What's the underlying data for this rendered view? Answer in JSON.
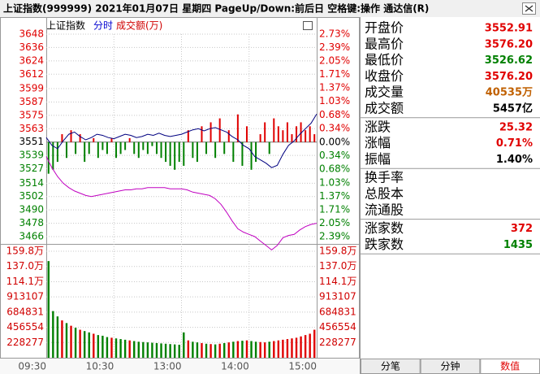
{
  "title_bar": {
    "title": "上证指数(999999)  2021年01月07日 星期四  PageUp/Down:前后日  空格键:操作  通达信(R)"
  },
  "chart": {
    "legend": {
      "name": "上证指数",
      "period": "分时",
      "indicator": "成交额(万)"
    },
    "price_axis": {
      "ylim": [
        3466,
        3648
      ],
      "ticks": [
        3648,
        3636,
        3624,
        3612,
        3599,
        3587,
        3575,
        3563,
        3551,
        3539,
        3527,
        3514,
        3502,
        3490,
        3478,
        3466
      ]
    },
    "pct_axis": {
      "y2lim": [
        -2.39,
        2.73
      ],
      "up_color": "#e00000",
      "flat_color": "#000000",
      "down_color": "#008000",
      "ticks": [
        {
          "value": 2.73,
          "label": "2.73%"
        },
        {
          "value": 2.39,
          "label": "2.39%"
        },
        {
          "value": 2.05,
          "label": "2.05%"
        },
        {
          "value": 1.71,
          "label": "1.71%"
        },
        {
          "value": 1.37,
          "label": "1.37%"
        },
        {
          "value": 1.03,
          "label": "1.03%"
        },
        {
          "value": 0.68,
          "label": "0.68%"
        },
        {
          "value": 0.34,
          "label": "0.34%"
        },
        {
          "value": 0,
          "label": "0.00%"
        },
        {
          "value": -0.34,
          "label": "0.34%"
        },
        {
          "value": -0.68,
          "label": "0.68%"
        },
        {
          "value": -1.03,
          "label": "1.03%"
        },
        {
          "value": -1.37,
          "label": "1.37%"
        },
        {
          "value": -1.71,
          "label": "1.71%"
        },
        {
          "value": -2.05,
          "label": "2.05%"
        },
        {
          "value": -2.39,
          "label": "2.39%"
        }
      ]
    },
    "volume_axis": {
      "ylim": [
        0,
        1598000
      ],
      "color": "#d00000",
      "ticks": [
        {
          "value": 1598000,
          "label": "159.8万"
        },
        {
          "value": 1370000,
          "label": "137.0万"
        },
        {
          "value": 1141000,
          "label": "114.1万"
        },
        913107,
        684831,
        456554,
        228277
      ]
    },
    "time_ticks": [
      "09:30",
      "10:30",
      "13:00",
      "14:00",
      "15:00"
    ],
    "index_line": {
      "color": "#000080",
      "values": [
        3555,
        3548,
        3545,
        3552,
        3558,
        3560,
        3556,
        3553,
        3555,
        3558,
        3557,
        3555,
        3554,
        3556,
        3558,
        3557,
        3555,
        3556,
        3558,
        3557,
        3559,
        3557,
        3556,
        3557,
        3558,
        3560,
        3562,
        3563,
        3561,
        3563,
        3564,
        3562,
        3560,
        3556,
        3553,
        3548,
        3545,
        3538,
        3535,
        3532,
        3528,
        3530,
        3540,
        3548,
        3552,
        3558,
        3563,
        3568,
        3576.2
      ]
    },
    "avg_line": {
      "color": "#c000c0",
      "values": [
        3538,
        3528,
        3520,
        3514,
        3510,
        3507,
        3505,
        3503,
        3502,
        3503,
        3504,
        3505,
        3506,
        3507,
        3508,
        3508,
        3509,
        3509,
        3510,
        3510,
        3510,
        3510,
        3509,
        3509,
        3509,
        3508,
        3506,
        3505,
        3504,
        3503,
        3500,
        3495,
        3488,
        3480,
        3473,
        3470,
        3468,
        3466,
        3462,
        3458,
        3454,
        3458,
        3465,
        3467,
        3468,
        3472,
        3475,
        3477,
        3478
      ]
    },
    "breadth": {
      "values": [
        -0.8,
        -0.7,
        -0.5,
        0.2,
        -0.4,
        0.3,
        -0.3,
        0.2,
        -0.5,
        -0.3,
        0.1,
        -0.4,
        -0.2,
        -0.3,
        0.1,
        -0.4,
        -0.3,
        -0.2,
        0.1,
        -0.3,
        -0.4,
        -0.2,
        -0.3,
        -0.1,
        -0.3,
        -0.4,
        -0.5,
        -0.6,
        -0.7,
        -0.5,
        -0.6,
        0.3,
        -0.4,
        -0.5,
        0.4,
        -0.3,
        0.5,
        -0.4,
        0.6,
        -0.3,
        0.3,
        -0.5,
        0.7,
        -0.6,
        0.4,
        -0.7,
        -0.5,
        0.2,
        0.5,
        -0.3,
        0.6,
        0.4,
        0.3,
        0.5,
        0.2,
        0.4,
        0.5,
        0.3,
        0.4,
        0.2
      ]
    },
    "volume": {
      "values": [
        1450000,
        700000,
        620000,
        560000,
        520000,
        480000,
        450000,
        420000,
        400000,
        380000,
        360000,
        340000,
        330000,
        310000,
        300000,
        290000,
        280000,
        270000,
        260000,
        250000,
        240000,
        235000,
        230000,
        225000,
        220000,
        215000,
        210000,
        205000,
        200000,
        195000,
        380000,
        260000,
        240000,
        230000,
        220000,
        210000,
        205000,
        200000,
        210000,
        220000,
        230000,
        240000,
        250000,
        255000,
        260000,
        250000,
        240000,
        235000,
        230000,
        240000,
        250000,
        260000,
        270000,
        280000,
        290000,
        300000,
        320000,
        340000,
        360000,
        420000
      ]
    }
  },
  "panel": {
    "groups": [
      [
        {
          "label": "开盘价",
          "value": "3552.91",
          "color": "#e00000"
        },
        {
          "label": "最高价",
          "value": "3576.20",
          "color": "#e00000"
        },
        {
          "label": "最低价",
          "value": "3526.62",
          "color": "#008000"
        },
        {
          "label": "收盘价",
          "value": "3576.20",
          "color": "#e00000"
        },
        {
          "label": "成交量",
          "value": "40535万",
          "color": "#c06000"
        },
        {
          "label": "成交额",
          "value": "5457亿",
          "color": "#000000"
        }
      ],
      [
        {
          "label": "涨跌",
          "value": "25.32",
          "color": "#e00000"
        },
        {
          "label": "涨幅",
          "value": "0.71%",
          "color": "#e00000"
        },
        {
          "label": "振幅",
          "value": "1.40%",
          "color": "#000000"
        }
      ],
      [
        {
          "label": "换手率"
        },
        {
          "label": "总股本"
        },
        {
          "label": "流通股"
        }
      ],
      [
        {
          "label": "涨家数",
          "value": "372",
          "color": "#e00000"
        },
        {
          "label": "跌家数",
          "value": "1435",
          "color": "#008000"
        }
      ]
    ]
  },
  "tabs": [
    {
      "label": "分笔"
    },
    {
      "label": "分钟"
    },
    {
      "label": "数值",
      "active": true
    }
  ]
}
